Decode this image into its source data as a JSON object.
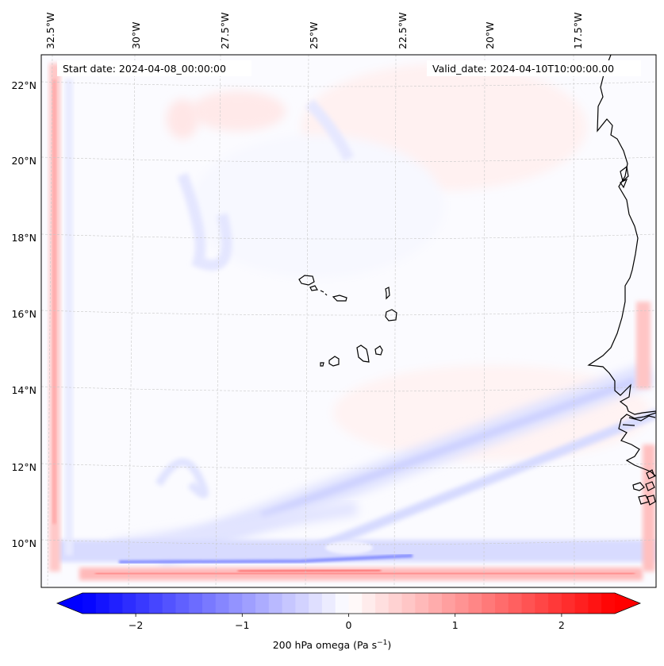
{
  "map": {
    "start_label": "Start date: 2024-04-08_00:00:00",
    "valid_label": "Valid_date: 2024-04-10T10:00:00.00",
    "lon_ticks": [
      "32.5°W",
      "30°W",
      "27.5°W",
      "25°W",
      "22.5°W",
      "20°W",
      "17.5°W"
    ],
    "lat_ticks": [
      "22°N",
      "20°N",
      "18°N",
      "16°N",
      "14°N",
      "12°N",
      "10°N"
    ],
    "lon_values": [
      -32.5,
      -30,
      -27.5,
      -25,
      -22.5,
      -20,
      -17.5
    ],
    "lat_values": [
      22,
      20,
      18,
      16,
      14,
      12,
      10
    ],
    "extent": {
      "lon_min": -32.7,
      "lon_max": -15.0,
      "lat_min": 8.9,
      "lat_max": 22.8
    },
    "features": [
      "Cape Verde islands",
      "West African coastline",
      "southern strong-omega band",
      "western edge red band"
    ]
  },
  "colorbar": {
    "ticks": [
      "−2",
      "−1",
      "0",
      "1",
      "2"
    ],
    "tick_values": [
      -2,
      -1,
      0,
      1,
      2
    ],
    "range": [
      -2.5,
      2.5
    ],
    "cmap": "bwr",
    "color_neg": "#0000ff",
    "color_zero": "#ffffff",
    "color_pos": "#ff0000",
    "title_main": "200 hPa omega (Pa s",
    "title_sup": "−1",
    "title_close": ")"
  }
}
